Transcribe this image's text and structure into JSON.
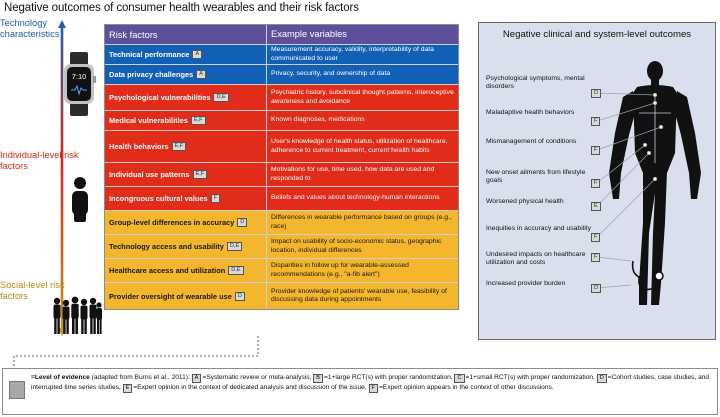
{
  "title": "Negative outcomes of consumer health wearables and their risk factors",
  "side_labels": {
    "technology": "Technology characteristics",
    "individual": "Individual-level risk factors",
    "social": "Social-level risk factors"
  },
  "watch_time": "7:10",
  "table": {
    "header_risk": "Risk factors",
    "header_vars": "Example variables",
    "rows": [
      {
        "risk": "Technical performance",
        "badge": "A",
        "vars": "Measurement accuracy, validity, interpretability of data communicated to user",
        "color": "#1260b6"
      },
      {
        "risk": "Data privacy challenges",
        "badge": "A",
        "vars": "Privacy, security, and ownership of data",
        "color": "#1260b6"
      },
      {
        "risk": "Psychological vulnerabilities",
        "badge": "D,E",
        "vars": "Psychiatric history, subclinical thought patterns, interoceptive awareness and avoidance",
        "color": "#e02c18"
      },
      {
        "risk": "Medical vulnerabilities",
        "badge": "E,F",
        "vars": "Known diagnoses, medications",
        "color": "#e02c18"
      },
      {
        "risk": "Health behaviors",
        "badge": "E,F",
        "vars": "User's knowledge of health status, utilization of healthcare, adherence to current treatment, current health habits",
        "color": "#e02c18"
      },
      {
        "risk": "Individual use patterns",
        "badge": "E,F",
        "vars": "Motivations for use, time used, how data are used and responded to",
        "color": "#e02c18"
      },
      {
        "risk": "Incongruous cultural values",
        "badge": "F",
        "vars": "Beliefs and values about technology-human interactions",
        "color": "#e02c18"
      },
      {
        "risk": "Group-level differences in accuracy",
        "badge": "D",
        "vars": "Differences in wearable performance based on groups (e.g., race)",
        "color": "#f3b62c"
      },
      {
        "risk": "Technology access and usability",
        "badge": "D,E",
        "vars": "Impact on usability of socio-economic status, geographic location, individual differences",
        "color": "#f3b62c"
      },
      {
        "risk": "Healthcare access and utilization",
        "badge": "D,E",
        "vars": "Disparities in follow up for wearable-assessed recommendations (e.g., \"a-fib alert\")",
        "color": "#f3b62c"
      },
      {
        "risk": "Provider oversight of wearable use",
        "badge": "D",
        "vars": "Provider knowledge of patients' wearable use, feasibility of discussing data during appointments",
        "color": "#f3b62c"
      }
    ]
  },
  "outcomes": {
    "title": "Negative clinical and system-level outcomes",
    "items": [
      {
        "label": "Psychological symptoms, mental disorders",
        "badge": "D"
      },
      {
        "label": "Maladaptive health behaviors",
        "badge": "F"
      },
      {
        "label": "Mismanagement of conditions",
        "badge": "F"
      },
      {
        "label": "New onset ailments from lifestyle goals",
        "badge": "F"
      },
      {
        "label": "Worsened physical health",
        "badge": "E"
      },
      {
        "label": "Inequities in accuracy and usability",
        "badge": "F"
      },
      {
        "label": "Undesired impacts on healthcare utilization and costs",
        "badge": "F"
      },
      {
        "label": "Increased provider burden",
        "badge": "D"
      }
    ]
  },
  "legend": {
    "intro": "=Level of evidence",
    "source": "(adapted from Burns et al., 2011):",
    "a_key": "A",
    "a": "=Systematic review or meta-analysis,",
    "b_key": "B",
    "b": "=1+large RCT(s) with proper randomization,",
    "c_key": "C",
    "c": "=1+small RCT(s) with proper randomization,",
    "d_key": "D",
    "d": "=Cohort studies, case studies, and interrupted time series studies,",
    "e_key": "E",
    "e": "=Expert opinion in the context of dedicated analysis and discussion of the issue,",
    "f_key": "F",
    "f": "=Expert opinion appears in the context of other discussions."
  }
}
